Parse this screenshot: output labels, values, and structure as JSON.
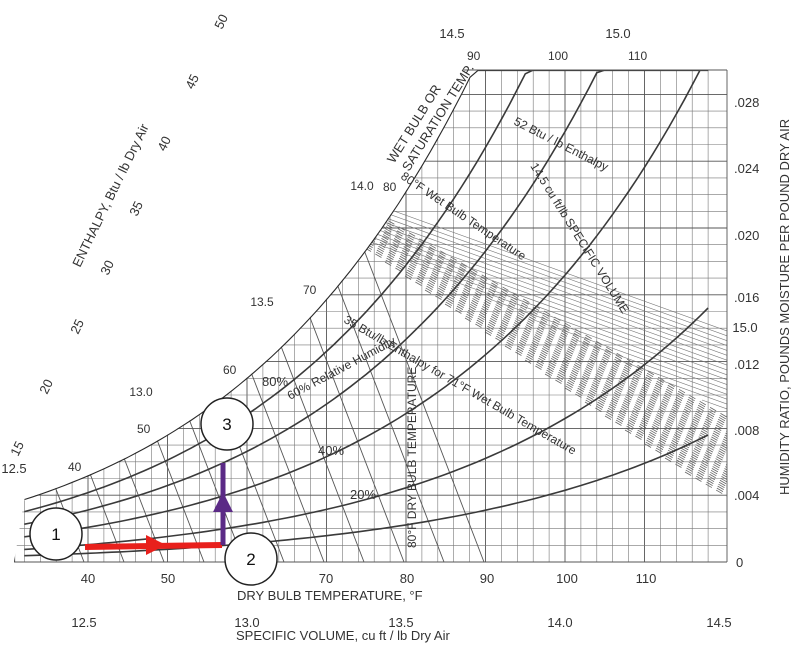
{
  "texts": {
    "x_axis_title": "DRY BULB TEMPERATURE, °F",
    "y_axis_title": "HUMIDITY RATIO, POUNDS MOISTURE PER POUND DRY AIR",
    "sv_axis_title": "SPECIFIC VOLUME, cu ft / lb Dry Air",
    "enthalpy_title": "ENTHALPY, Btu / lb Dry Air",
    "wb_title_1": "WET BULB OR",
    "wb_title_2": "SATURATION TEMP.",
    "ann_52btu": "52 Btu / lb Enthalpy",
    "ann_80wb": "80°F Wet Bulb Temperature",
    "ann_145sv": "14.5 cu ft/lb SPECIFIC VOLUME",
    "ann_60rh": "60% Relative Humidity",
    "ann_35btu": "35 Btu/lb Enthalpy for 71°F Wet Bulb Temperature",
    "ann_80db": "80°F DRY BULB TEMPERATURE",
    "rh_80": "80%",
    "rh_40": "40%",
    "rh_20": "20%"
  },
  "x_ticks": [
    "40",
    "50",
    "60",
    "70",
    "80",
    "90",
    "100",
    "110"
  ],
  "y_ticks": [
    ".028",
    ".024",
    ".020",
    ".016",
    ".012",
    ".008",
    ".004",
    "0"
  ],
  "sv_bottom_ticks": [
    "12.5",
    "13.0",
    "13.5",
    "14.0",
    "14.5"
  ],
  "sv_top_ticks": [
    "14.5",
    "15.0"
  ],
  "sv_inner_ticks": [
    "13.0",
    "13.5",
    "14.0",
    "15.0"
  ],
  "sv_left_tick": "12.5",
  "enthalpy_ticks": [
    "15",
    "20",
    "25",
    "30",
    "35",
    "40",
    "45",
    "50"
  ],
  "wb_ticks": [
    "40",
    "50",
    "60",
    "70",
    "80",
    "90",
    "100",
    "110"
  ],
  "callouts": [
    "1",
    "2",
    "3"
  ],
  "colors": {
    "process_heating": "#e8201c",
    "process_humidify": "#5b2a86",
    "chart_lines": "#444444"
  }
}
